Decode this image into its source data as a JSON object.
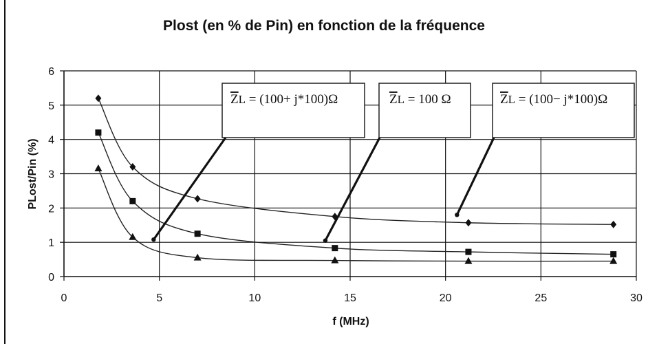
{
  "chart_data": {
    "type": "line",
    "title": "Plost (en % de Pin) en fonction de la fréquence",
    "xlabel": "f (MHz)",
    "ylabel": "PLost/Pin (%)",
    "xlim": [
      0,
      30
    ],
    "ylim": [
      0,
      6
    ],
    "xticks": [
      "0",
      "5",
      "10",
      "15",
      "20",
      "25",
      "30"
    ],
    "yticks": [
      "0",
      "1",
      "2",
      "3",
      "4",
      "5",
      "6"
    ],
    "grid": true,
    "legend": "none",
    "series": [
      {
        "name": "Z̄L = (100+j*100)Ω",
        "marker": "diamond",
        "x": [
          1.8,
          3.6,
          7.0,
          14.2,
          21.2,
          28.8
        ],
        "y": [
          5.2,
          3.2,
          2.27,
          1.75,
          1.57,
          1.52
        ]
      },
      {
        "name": "Z̄L = 100 Ω",
        "marker": "square",
        "x": [
          1.8,
          3.6,
          7.0,
          14.2,
          21.2,
          28.8
        ],
        "y": [
          4.2,
          2.2,
          1.25,
          0.83,
          0.72,
          0.65
        ]
      },
      {
        "name": "Z̄L = (100−j*100)Ω",
        "marker": "triangle",
        "x": [
          1.8,
          3.6,
          7.0,
          14.2,
          21.2,
          28.8
        ],
        "y": [
          3.15,
          1.15,
          0.55,
          0.47,
          0.45,
          0.45
        ]
      }
    ],
    "annotations": [
      {
        "prefix": "Z",
        "sub": "L",
        "text": " = (100+ j*100)Ω",
        "points_to": {
          "x": 4.7,
          "y": 1.08
        }
      },
      {
        "prefix": "Z",
        "sub": "L",
        "text": " = 100 Ω",
        "points_to": {
          "x": 13.7,
          "y": 1.05
        }
      },
      {
        "prefix": "Z",
        "sub": "L",
        "text": " = (100− j*100)Ω",
        "points_to": {
          "x": 20.6,
          "y": 1.8
        }
      }
    ]
  }
}
